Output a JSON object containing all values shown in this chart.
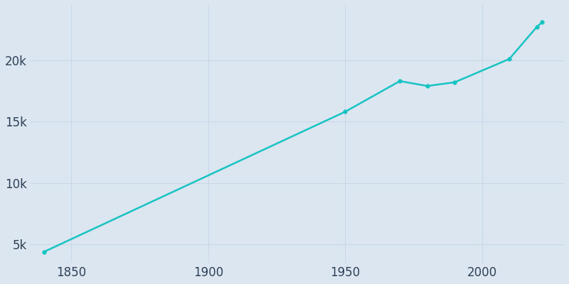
{
  "years": [
    1840,
    1950,
    1970,
    1980,
    1990,
    2010,
    2020,
    2022
  ],
  "population": [
    4400,
    15800,
    18300,
    17900,
    18200,
    20100,
    22700,
    23100
  ],
  "line_color": "#17C3C3",
  "marker_color": "#17C3C3",
  "bg_color": "#dce6f0",
  "grid_color": "#c8d8e8",
  "tick_label_color": "#2e4057",
  "xlim": [
    1835,
    2030
  ],
  "ylim": [
    3500,
    24500
  ],
  "yticks": [
    5000,
    10000,
    15000,
    20000
  ],
  "ytick_labels": [
    "5k",
    "10k",
    "15k",
    "20k"
  ],
  "xticks": [
    1850,
    1900,
    1950,
    2000
  ]
}
